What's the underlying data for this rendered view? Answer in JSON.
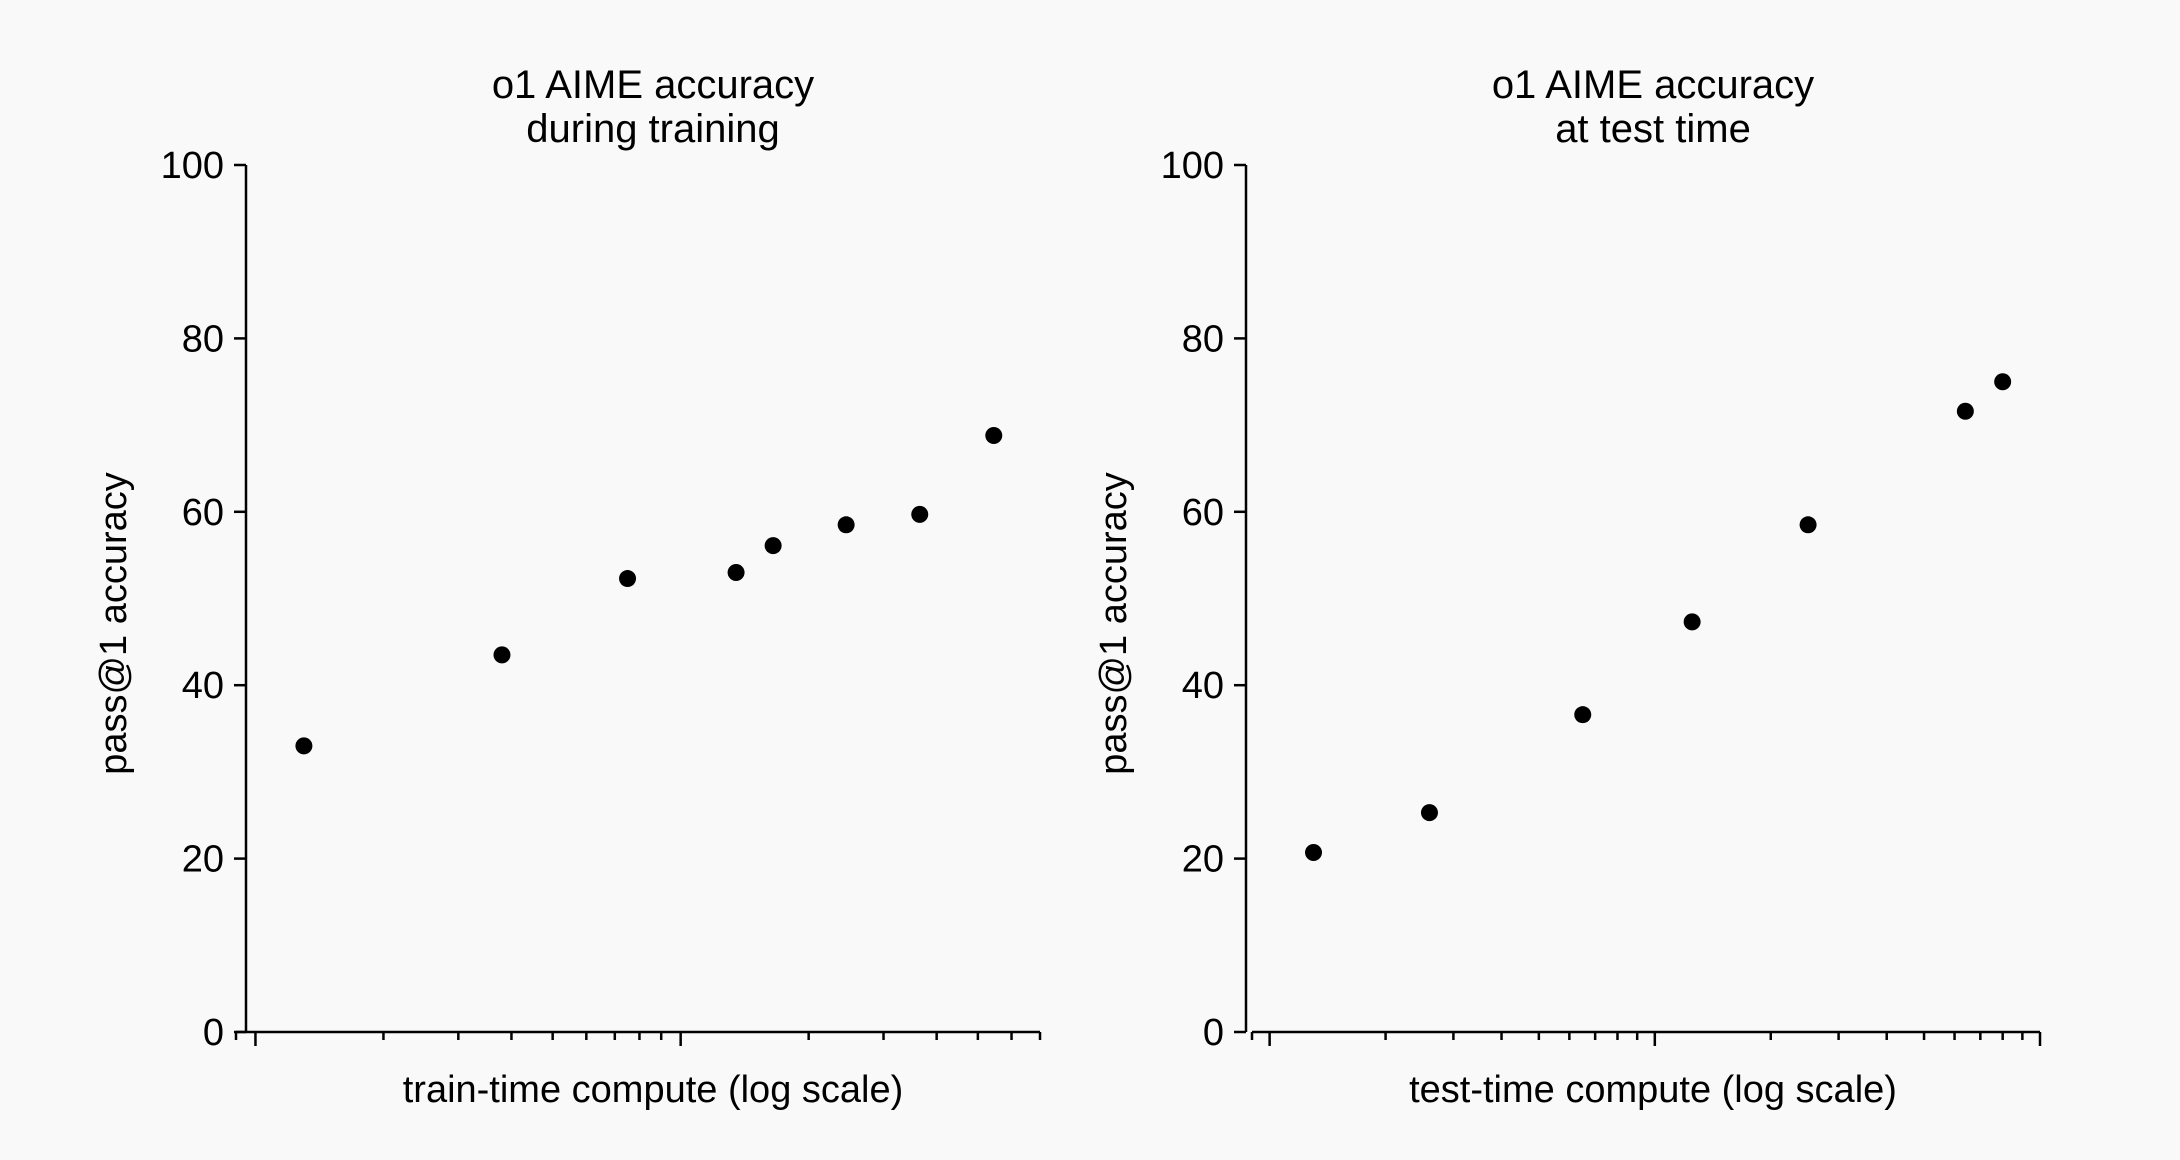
{
  "chart_data": [
    {
      "type": "scatter",
      "title": [
        "o1 AIME accuracy",
        "during training"
      ],
      "xlabel": "train-time compute (log scale)",
      "ylabel": "pass@1 accuracy",
      "x_scale": "log",
      "x_tick_labels": "none",
      "yticks": [
        0,
        20,
        40,
        60,
        80,
        100
      ],
      "ylim": [
        0,
        100
      ],
      "grid": false,
      "legend": "none",
      "series": [
        {
          "x": [
            1.3,
            3.8,
            7.5,
            13.5,
            16.5,
            24.5,
            36.5,
            54.5
          ],
          "y": [
            33,
            43.5,
            52.3,
            53,
            56.1,
            58.5,
            59.7,
            68.8
          ]
        }
      ]
    },
    {
      "type": "scatter",
      "title": [
        "o1 AIME accuracy",
        "at test time"
      ],
      "xlabel": "test-time compute (log scale)",
      "ylabel": "pass@1 accuracy",
      "x_scale": "log",
      "x_tick_labels": "none",
      "yticks": [
        0,
        20,
        40,
        60,
        80,
        100
      ],
      "ylim": [
        0,
        100
      ],
      "grid": false,
      "legend": "none",
      "series": [
        {
          "x": [
            1.3,
            2.6,
            6.5,
            12.5,
            25,
            64,
            80
          ],
          "y": [
            20.7,
            25.3,
            36.6,
            47.3,
            58.5,
            71.6,
            75
          ]
        }
      ]
    }
  ]
}
